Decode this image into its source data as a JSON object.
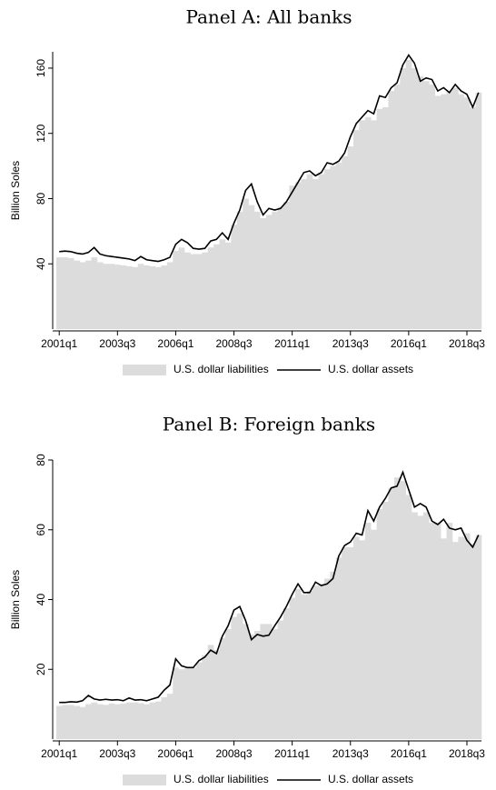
{
  "chart_data": [
    {
      "type": "bar",
      "title": "Panel A: All banks",
      "y_label": "Billion Soles",
      "categories": [
        "2001q1",
        null,
        null,
        null,
        null,
        null,
        null,
        null,
        null,
        null,
        "2003q3",
        null,
        null,
        null,
        null,
        null,
        null,
        null,
        null,
        null,
        "2006q1",
        null,
        null,
        null,
        null,
        null,
        null,
        null,
        null,
        null,
        "2008q3",
        null,
        null,
        null,
        null,
        null,
        null,
        null,
        null,
        null,
        "2011q1",
        null,
        null,
        null,
        null,
        null,
        null,
        null,
        null,
        null,
        "2013q3",
        null,
        null,
        null,
        null,
        null,
        null,
        null,
        null,
        null,
        "2016q1",
        null,
        null,
        null,
        null,
        null,
        null,
        null,
        null,
        null,
        "2018q3",
        null,
        null
      ],
      "ylim": [
        0,
        170
      ],
      "yticks": [
        40,
        80,
        120,
        160
      ],
      "legend": "bottom",
      "series": [
        {
          "name": "U.S. dollar liabilities",
          "type": "bar",
          "color": "#dcdcdc",
          "values": [
            44,
            44,
            43.5,
            42,
            41,
            42,
            44,
            41,
            40,
            40,
            39.5,
            39,
            38.5,
            38,
            40,
            39,
            38.5,
            38,
            39,
            41,
            48,
            50,
            47,
            46,
            46,
            47,
            50,
            52,
            55,
            53,
            64,
            72,
            80,
            76,
            72,
            68,
            70,
            72,
            75,
            78,
            88,
            90,
            92,
            95,
            92,
            95,
            98,
            100,
            102,
            106,
            112,
            122,
            128,
            130,
            128,
            135,
            136,
            146,
            150,
            160,
            165,
            160,
            155,
            152,
            150,
            143,
            144,
            146,
            148,
            144,
            142,
            136,
            145
          ]
        },
        {
          "name": "U.S. dollar assets",
          "type": "line",
          "color": "#000000",
          "values": [
            47.5,
            47.8,
            47.5,
            46.5,
            46,
            47,
            50,
            46,
            45,
            44.5,
            44,
            43.5,
            43,
            42,
            44.5,
            42.5,
            42,
            41.5,
            42.5,
            44,
            52,
            55,
            53,
            49.5,
            49,
            49.5,
            54,
            55,
            59,
            55,
            65,
            73,
            85,
            89,
            78,
            70,
            74,
            73,
            74,
            78,
            84,
            90,
            96,
            97,
            94,
            96,
            102,
            101,
            103,
            108,
            118,
            126,
            130,
            134,
            132,
            143,
            142,
            148,
            151,
            162,
            168,
            163,
            152,
            154,
            153,
            146,
            148,
            145,
            150,
            146,
            144,
            136,
            145
          ]
        }
      ]
    },
    {
      "type": "bar",
      "title": "Panel B: Foreign banks",
      "y_label": "Billion Soles",
      "categories": [
        "2001q1",
        null,
        null,
        null,
        null,
        null,
        null,
        null,
        null,
        null,
        "2003q3",
        null,
        null,
        null,
        null,
        null,
        null,
        null,
        null,
        null,
        "2006q1",
        null,
        null,
        null,
        null,
        null,
        null,
        null,
        null,
        null,
        "2008q3",
        null,
        null,
        null,
        null,
        null,
        null,
        null,
        null,
        null,
        "2011q1",
        null,
        null,
        null,
        null,
        null,
        null,
        null,
        null,
        null,
        "2013q3",
        null,
        null,
        null,
        null,
        null,
        null,
        null,
        null,
        null,
        "2016q1",
        null,
        null,
        null,
        null,
        null,
        null,
        null,
        null,
        null,
        "2018q3",
        null,
        null
      ],
      "ylim": [
        0,
        80
      ],
      "yticks": [
        20,
        40,
        60,
        80
      ],
      "legend": "bottom",
      "series": [
        {
          "name": "U.S. dollar liabilities",
          "type": "bar",
          "color": "#dcdcdc",
          "values": [
            9.5,
            9.8,
            9.8,
            9.5,
            9.2,
            10,
            10.5,
            10,
            9.8,
            10.2,
            10,
            10.2,
            10.5,
            10.5,
            10.3,
            10,
            10.5,
            10.8,
            12,
            13,
            20.5,
            20,
            20.5,
            20.5,
            22,
            24,
            27,
            25.5,
            29,
            31.5,
            35,
            36,
            33,
            30,
            31,
            33,
            33,
            31.5,
            34,
            37.5,
            40.5,
            43,
            41.5,
            42.5,
            44,
            44.5,
            46,
            48,
            52,
            55,
            55,
            58,
            57,
            62,
            60,
            66,
            68,
            72,
            75,
            74,
            70,
            65,
            64,
            65,
            62,
            62,
            57.5,
            62,
            56.5,
            58,
            59,
            56,
            58.5
          ]
        },
        {
          "name": "U.S. dollar assets",
          "type": "line",
          "color": "#000000",
          "values": [
            10.5,
            10.5,
            10.7,
            10.6,
            11,
            12.5,
            11.5,
            11.2,
            11.4,
            11.2,
            11.3,
            11,
            11.8,
            11.2,
            11.3,
            11,
            11.5,
            12,
            14,
            15.5,
            23,
            21,
            20.5,
            20.5,
            22.5,
            23.5,
            25.5,
            24.5,
            29.5,
            32.5,
            37,
            38,
            34,
            28.5,
            30,
            29.5,
            29.8,
            32.5,
            35,
            38,
            41.5,
            44.5,
            42,
            42,
            45,
            44,
            44.5,
            46,
            52.5,
            55.5,
            56.5,
            59,
            58.5,
            65.5,
            62.5,
            66.5,
            69,
            72,
            72.5,
            76.5,
            71.5,
            66.5,
            67.5,
            66.5,
            62.5,
            61.5,
            63,
            60.5,
            60,
            60.5,
            57,
            55,
            58.5
          ]
        }
      ]
    }
  ]
}
